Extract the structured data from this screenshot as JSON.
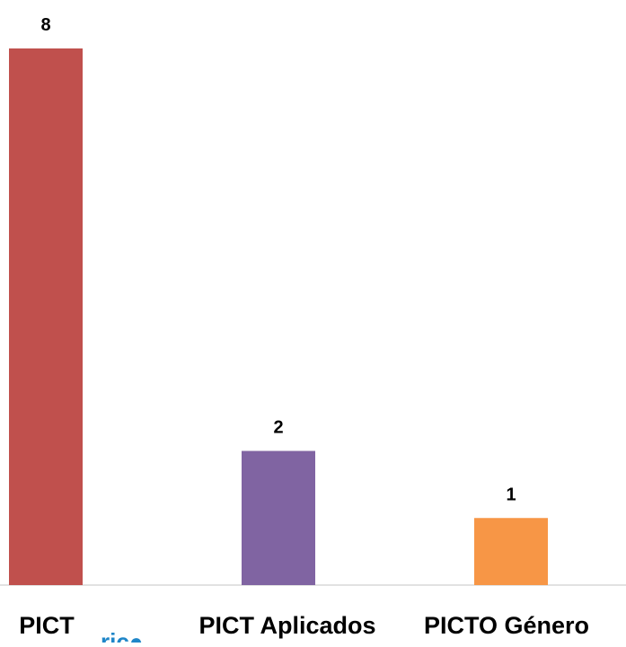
{
  "chart_data": {
    "type": "bar",
    "title": "",
    "xlabel": "",
    "ylabel": "",
    "categories": [
      "PICT",
      "PICT Aplicados",
      "PICTO Género"
    ],
    "values": [
      8,
      2,
      1
    ],
    "colors": [
      "#c0504d",
      "#8064a2",
      "#f79646"
    ],
    "ylim": [
      0,
      8
    ],
    "grid": false,
    "legend": "none",
    "data_labels": [
      "8",
      "2",
      "1"
    ]
  },
  "partial_logo": {
    "text": "rjc●"
  }
}
